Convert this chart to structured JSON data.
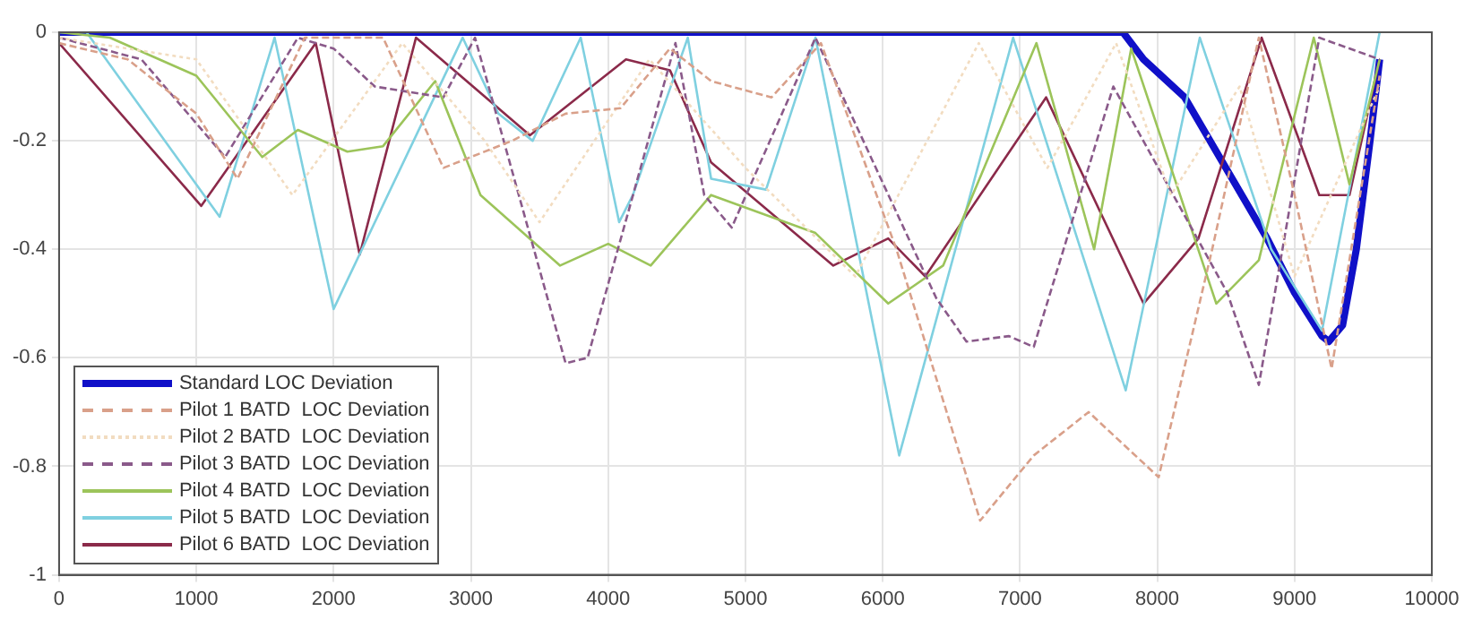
{
  "chart_data": {
    "type": "line",
    "xlim": [
      0,
      10000
    ],
    "xticks": [
      0,
      1000,
      2000,
      3000,
      4000,
      5000,
      6000,
      7000,
      8000,
      9000,
      10000
    ],
    "ylim": [
      -1,
      0
    ],
    "yticks": [
      -1,
      -0.8,
      -0.6,
      -0.4,
      -0.2,
      0
    ],
    "grid": true,
    "legend": "bottom left",
    "marker": "none",
    "series": [
      {
        "name": "Standard LOC Deviation",
        "color": "#1010c8",
        "line_style": "solid",
        "x": [
          0,
          7750,
          7900,
          8200,
          8500,
          8800,
          9000,
          9200,
          9250,
          9350,
          9450,
          9550,
          9620
        ],
        "values": [
          0,
          0,
          -0.05,
          -0.12,
          -0.25,
          -0.38,
          -0.48,
          -0.56,
          -0.57,
          -0.54,
          -0.4,
          -0.2,
          -0.05
        ]
      },
      {
        "name": "Pilot 1 BATD  LOC Deviation",
        "color": "#d9a08a",
        "line_style": "dashed",
        "x": [
          0,
          500,
          1000,
          1300,
          1790,
          2360,
          2800,
          3300,
          3690,
          4090,
          4450,
          4750,
          5190,
          5550,
          6100,
          6710,
          7100,
          7500,
          8010,
          8400,
          8740,
          9000,
          9270,
          9620
        ],
        "values": [
          -0.02,
          -0.05,
          -0.15,
          -0.27,
          -0.01,
          -0.01,
          -0.25,
          -0.2,
          -0.15,
          -0.14,
          -0.03,
          -0.09,
          -0.12,
          -0.02,
          -0.4,
          -0.9,
          -0.78,
          -0.7,
          -0.82,
          -0.4,
          -0.01,
          -0.3,
          -0.62,
          -0.08
        ]
      },
      {
        "name": "Pilot 2 BATD  LOC Deviation",
        "color": "#f2dcc0",
        "line_style": "dotted",
        "x": [
          0,
          1000,
          1700,
          2500,
          3100,
          3500,
          4300,
          5000,
          5800,
          6700,
          7200,
          7700,
          8100,
          8600,
          9000,
          9620
        ],
        "values": [
          -0.01,
          -0.05,
          -0.3,
          -0.02,
          -0.2,
          -0.35,
          -0.05,
          -0.25,
          -0.45,
          -0.02,
          -0.25,
          -0.02,
          -0.3,
          -0.1,
          -0.45,
          -0.1
        ]
      },
      {
        "name": "Pilot 3 BATD  LOC Deviation",
        "color": "#8a5a8a",
        "line_style": "dashed",
        "x": [
          0,
          600,
          1210,
          1740,
          2000,
          2300,
          2800,
          3030,
          3690,
          3850,
          4490,
          4700,
          4900,
          5510,
          6390,
          6610,
          6920,
          7100,
          7680,
          8510,
          8740,
          9180,
          9620
        ],
        "values": [
          -0.01,
          -0.05,
          -0.23,
          -0.01,
          -0.03,
          -0.1,
          -0.12,
          -0.01,
          -0.61,
          -0.6,
          -0.02,
          -0.3,
          -0.36,
          -0.01,
          -0.49,
          -0.57,
          -0.56,
          -0.58,
          -0.1,
          -0.48,
          -0.65,
          -0.01,
          -0.05
        ]
      },
      {
        "name": "Pilot 4 BATD  LOC Deviation",
        "color": "#9cc45a",
        "line_style": "solid",
        "x": [
          0,
          370,
          1000,
          1480,
          1740,
          2100,
          2360,
          2740,
          3070,
          3650,
          4000,
          4310,
          4750,
          5510,
          6040,
          6440,
          7120,
          7540,
          7810,
          8430,
          8740,
          9140,
          9400,
          9620
        ],
        "values": [
          0,
          -0.01,
          -0.08,
          -0.23,
          -0.18,
          -0.22,
          -0.21,
          -0.09,
          -0.3,
          -0.43,
          -0.39,
          -0.43,
          -0.3,
          -0.37,
          -0.5,
          -0.43,
          -0.02,
          -0.4,
          -0.03,
          -0.5,
          -0.42,
          -0.01,
          -0.28,
          -0.05
        ]
      },
      {
        "name": "Pilot 5 BATD  LOC Deviation",
        "color": "#7fd0e0",
        "line_style": "solid",
        "x": [
          0,
          200,
          1170,
          1570,
          2000,
          2940,
          3200,
          3450,
          3800,
          4080,
          4180,
          4580,
          4750,
          5150,
          5510,
          6120,
          6950,
          7770,
          8310,
          8830,
          9200,
          9620
        ],
        "values": [
          0,
          0,
          -0.34,
          -0.01,
          -0.51,
          -0.01,
          -0.15,
          -0.2,
          -0.01,
          -0.35,
          -0.3,
          -0.01,
          -0.27,
          -0.29,
          -0.01,
          -0.78,
          -0.01,
          -0.66,
          -0.01,
          -0.4,
          -0.55,
          0
        ]
      },
      {
        "name": "Pilot 6 BATD  LOC Deviation",
        "color": "#8b2a4a",
        "line_style": "solid",
        "x": [
          0,
          1036,
          1870,
          2190,
          2600,
          3430,
          4130,
          4450,
          4750,
          5640,
          6040,
          6310,
          7190,
          7900,
          8300,
          8760,
          9180,
          9400,
          9620
        ],
        "values": [
          -0.02,
          -0.32,
          -0.02,
          -0.41,
          -0.01,
          -0.19,
          -0.05,
          -0.07,
          -0.24,
          -0.43,
          -0.38,
          -0.45,
          -0.12,
          -0.5,
          -0.38,
          -0.01,
          -0.3,
          -0.3,
          -0.05
        ]
      }
    ]
  }
}
